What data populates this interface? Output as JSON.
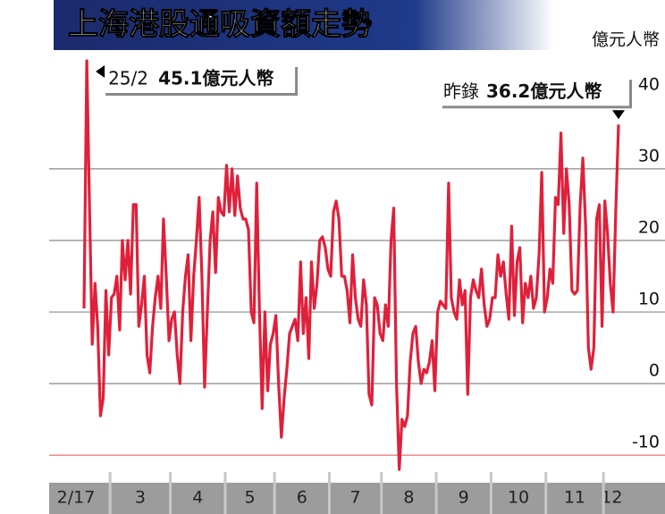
{
  "chart_data": {
    "type": "line",
    "title": "上海港股通吸資額走勢",
    "y_unit": "億元人幣",
    "ylim": [
      -12.6,
      46.1
    ],
    "yticks": [
      -10,
      0,
      10,
      20,
      30,
      40
    ],
    "grid": true,
    "categories": [
      "2/17",
      null,
      null,
      null,
      null,
      null,
      null,
      null,
      null,
      null,
      "3",
      null,
      null,
      null,
      null,
      null,
      null,
      null,
      null,
      null,
      null,
      null,
      null,
      null,
      null,
      null,
      null,
      null,
      null,
      null,
      null,
      null,
      "4",
      null,
      null,
      null,
      null,
      null,
      null,
      null,
      null,
      null,
      null,
      null,
      null,
      null,
      null,
      null,
      null,
      null,
      null,
      null,
      "5",
      null,
      null,
      null,
      null,
      null,
      null,
      null,
      null,
      null,
      null,
      null,
      null,
      null,
      null,
      null,
      null,
      null,
      "6",
      null,
      null,
      null,
      null,
      null,
      null,
      null,
      null,
      null,
      null,
      null,
      null,
      null,
      null,
      null,
      null,
      null,
      null,
      null,
      "7",
      null,
      null,
      null,
      null,
      null,
      null,
      null,
      null,
      null,
      null,
      null,
      null,
      null,
      null,
      null,
      null,
      null,
      null,
      "8",
      null,
      null,
      null,
      null,
      null,
      null,
      null,
      null,
      null,
      null,
      null,
      null,
      null,
      null,
      null,
      null,
      null,
      null,
      null,
      "9",
      null,
      null,
      null,
      null,
      null,
      null,
      null,
      null,
      null,
      null,
      null,
      null,
      null,
      null,
      null,
      null,
      null,
      null,
      null,
      "10",
      null,
      null,
      null,
      null,
      null,
      null,
      null,
      null,
      null,
      null,
      null,
      null,
      null,
      null,
      null,
      null,
      null,
      null,
      null,
      "11",
      null,
      null,
      null,
      null,
      null,
      null,
      null,
      null,
      null,
      null,
      null,
      null,
      null,
      null,
      null,
      null,
      null,
      null,
      null,
      null,
      "12",
      null,
      null,
      null,
      null,
      null
    ],
    "series": [
      {
        "color": "#e0203a",
        "values": [
          10.5,
          45.1,
          25,
          5.5,
          14,
          8,
          -4.5,
          -2,
          13,
          4,
          12,
          12.5,
          15,
          7.5,
          20,
          14.5,
          20,
          12.5,
          25,
          25,
          8,
          11,
          15,
          4,
          1.5,
          8,
          12,
          15,
          10.5,
          23,
          15,
          6,
          9,
          10,
          4,
          0,
          10,
          15,
          18,
          6,
          15,
          20,
          26,
          15,
          -0.5,
          10,
          20,
          24,
          15.5,
          26,
          24,
          23.5,
          30.5,
          24,
          30,
          23.5,
          29,
          24.5,
          23,
          23,
          21.5,
          10,
          8.5,
          28,
          10,
          -3.5,
          10,
          -1,
          5.5,
          7,
          9.5,
          0,
          -7.5,
          -2,
          2,
          7,
          8,
          9,
          6,
          17,
          7,
          12,
          3.5,
          17,
          10.5,
          14,
          20,
          20.5,
          19,
          16,
          15,
          24,
          25.5,
          23,
          15,
          15,
          13,
          8.5,
          18,
          12,
          9,
          8,
          14.5,
          11,
          -1.5,
          -3,
          12,
          11,
          7,
          6,
          11,
          8,
          20,
          24.5,
          0,
          -12,
          -5,
          -6,
          -4.5,
          3,
          7,
          8,
          3,
          0,
          2,
          1.5,
          3,
          6,
          -1,
          10,
          11.5,
          11,
          10.5,
          28,
          12,
          10,
          9,
          14.5,
          11,
          13,
          -1.5,
          12,
          14.5,
          13,
          12,
          16,
          11,
          8,
          9,
          12,
          12,
          18,
          15,
          17,
          12.5,
          9,
          22,
          9.5,
          17,
          19,
          8.5,
          14,
          12,
          15,
          10.5,
          12,
          18,
          29.5,
          10,
          12,
          16,
          14,
          26,
          25,
          35,
          21,
          30,
          25,
          13,
          12.5,
          13,
          25,
          31.5,
          22,
          5,
          2,
          5,
          23,
          25,
          8,
          25.5,
          21,
          14,
          10,
          24,
          36.2
        ]
      }
    ],
    "annotations": [
      {
        "index": 1,
        "date": "25/2",
        "text": "45.1億元人幣"
      },
      {
        "index": 195,
        "prefix": "昨錄",
        "text": "36.2億元人幣"
      }
    ]
  }
}
